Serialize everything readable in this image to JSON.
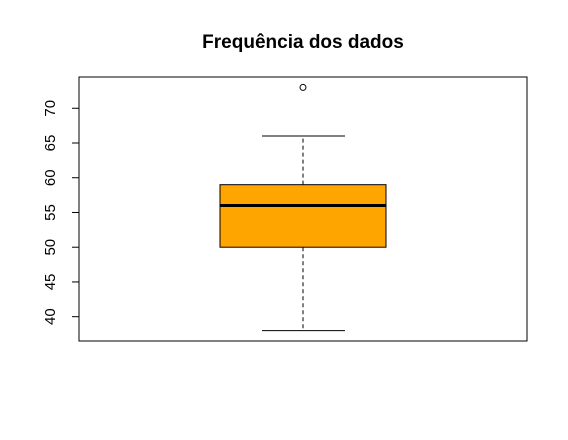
{
  "chart_data": {
    "type": "boxplot",
    "title": "Frequência dos dados",
    "xlabel": "",
    "ylabel": "",
    "y_ticks": [
      40,
      45,
      50,
      55,
      60,
      65,
      70
    ],
    "ylim": [
      36.5,
      74.5
    ],
    "box": {
      "whisker_low": 38,
      "q1": 50,
      "median": 56,
      "q3": 59,
      "whisker_high": 66,
      "outliers": [
        73
      ]
    },
    "colors": {
      "box_fill": "#FFA500",
      "stroke": "#000000"
    },
    "grid": false,
    "legend": "none"
  }
}
